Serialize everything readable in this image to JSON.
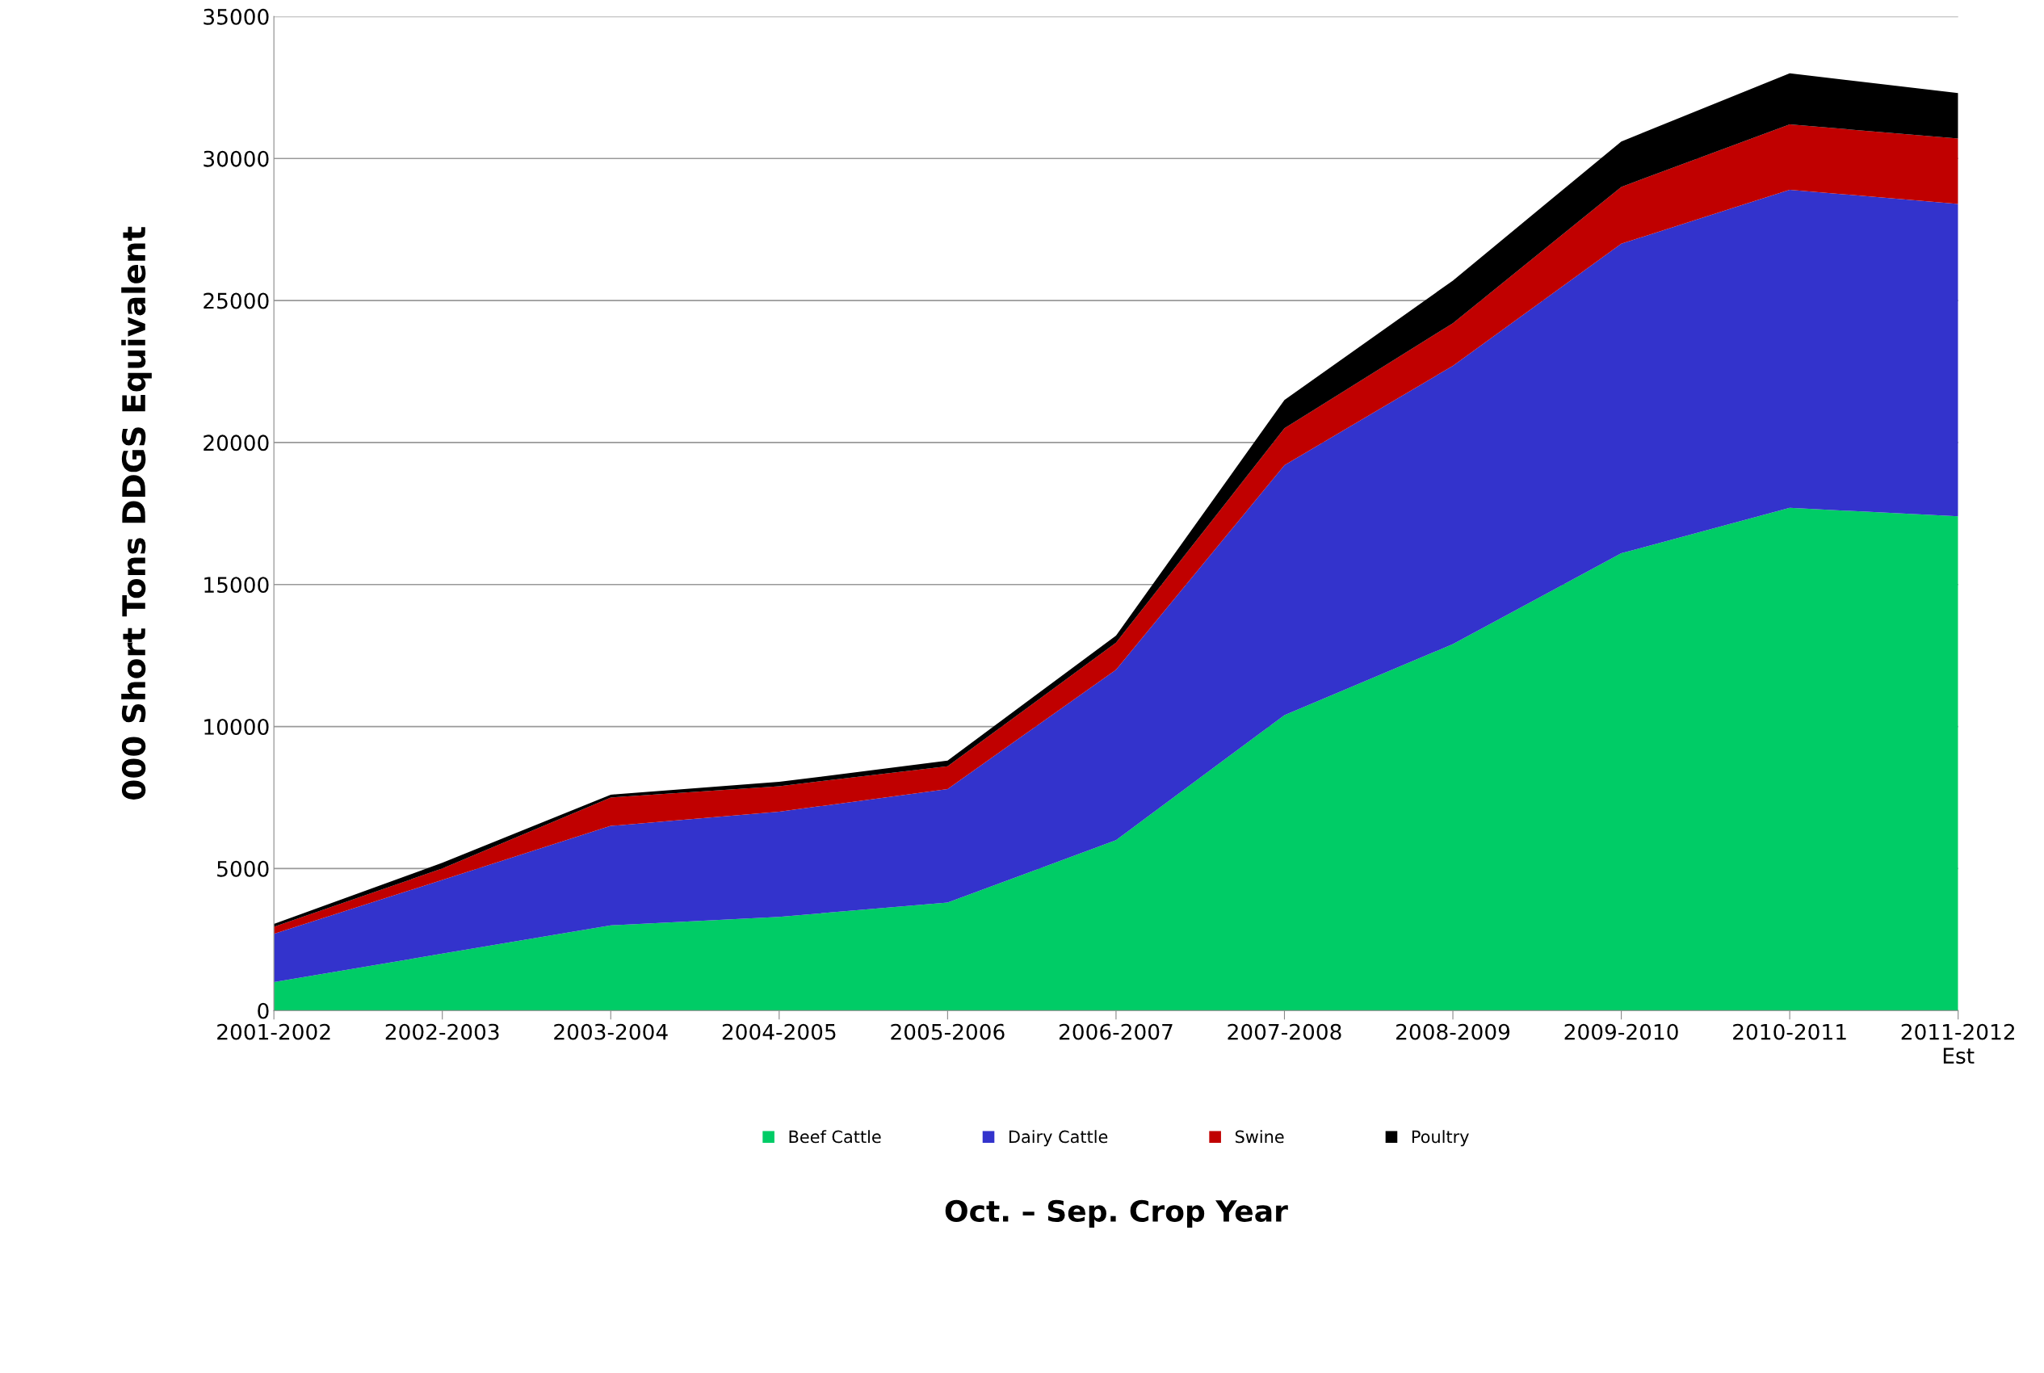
{
  "chart_data": {
    "type": "area",
    "stacked": true,
    "xlabel": "Oct. – Sep. Crop Year",
    "ylabel": "000 Short Tons DDGS Equivalent",
    "categories": [
      "2001-2002",
      "2002-2003",
      "2003-2004",
      "2004-2005",
      "2005-2006",
      "2006-2007",
      "2007-2008",
      "2008-2009",
      "2009-2010",
      "2010-2011",
      "2011-2012\nEst"
    ],
    "series": [
      {
        "name": "Beef Cattle",
        "color": "#00cc66",
        "values": [
          1000,
          2000,
          3000,
          3300,
          3800,
          6000,
          10400,
          12900,
          16100,
          17700,
          17400
        ]
      },
      {
        "name": "Dairy Cattle",
        "color": "#3333cc",
        "values": [
          1700,
          2600,
          3500,
          3700,
          4000,
          6000,
          8800,
          9800,
          10900,
          11200,
          11000
        ]
      },
      {
        "name": "Swine",
        "color": "#c00000",
        "values": [
          250,
          400,
          1000,
          900,
          800,
          950,
          1300,
          1500,
          2000,
          2300,
          2300
        ]
      },
      {
        "name": "Poultry",
        "color": "#000000",
        "values": [
          100,
          200,
          100,
          150,
          200,
          250,
          1000,
          1500,
          1600,
          1800,
          1600
        ]
      }
    ],
    "ylim": [
      0,
      35000
    ],
    "yticks": [
      0,
      5000,
      10000,
      15000,
      20000,
      25000,
      30000,
      35000
    ],
    "grid": "y",
    "legend": "bottom"
  }
}
